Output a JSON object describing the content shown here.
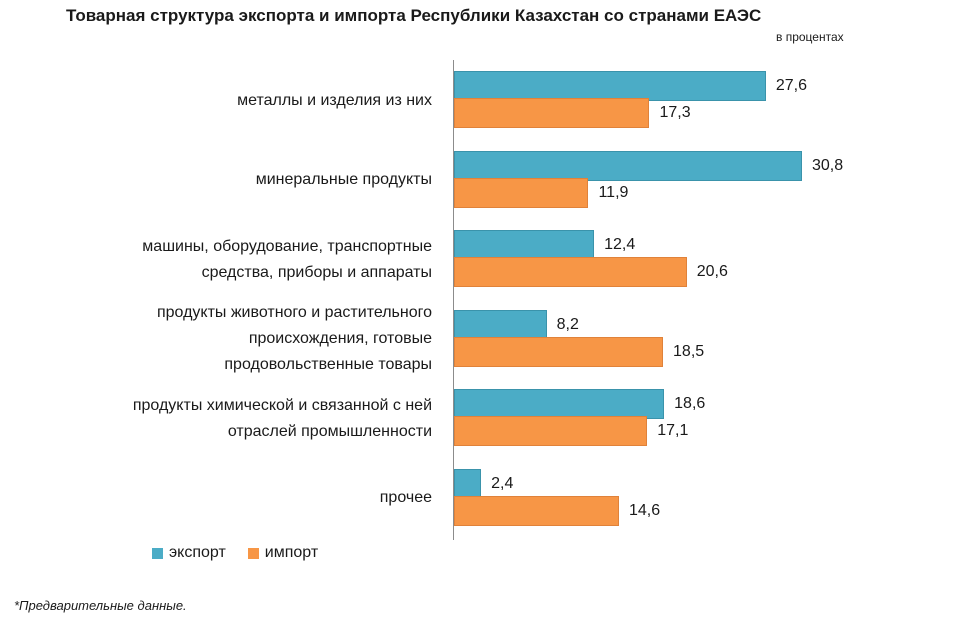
{
  "chart_data": {
    "type": "bar",
    "orientation": "horizontal",
    "title": "Товарная структура экспорта и импорта Республики Казахстан со странами ЕАЭС",
    "unit_label": "в процентах",
    "categories": [
      [
        "металлы и изделия из них"
      ],
      [
        "минеральные продукты"
      ],
      [
        "машины, оборудование, транспортные",
        "средства, приборы и аппараты"
      ],
      [
        "продукты животного и растительного",
        "происхождения, готовые",
        "продовольственные товары"
      ],
      [
        "продукты химической и связанной с ней",
        "отраслей промышленности"
      ],
      [
        "прочее"
      ]
    ],
    "series": [
      {
        "name": "экспорт",
        "color": "#4bacc6",
        "values": [
          27.6,
          30.8,
          12.4,
          8.2,
          18.6,
          2.4
        ],
        "labels": [
          "27,6",
          "30,8",
          "12,4",
          "8,2",
          "18,6",
          "2,4"
        ]
      },
      {
        "name": "импорт",
        "color": "#f79646",
        "values": [
          17.3,
          11.9,
          20.6,
          18.5,
          17.1,
          14.6
        ],
        "labels": [
          "17,3",
          "11,9",
          "20,6",
          "18,5",
          "17,1",
          "14,6"
        ]
      }
    ],
    "xlim": [
      0,
      31
    ],
    "grid": false,
    "legend_position": "bottom-left"
  },
  "footnote": "*Предварительные данные."
}
